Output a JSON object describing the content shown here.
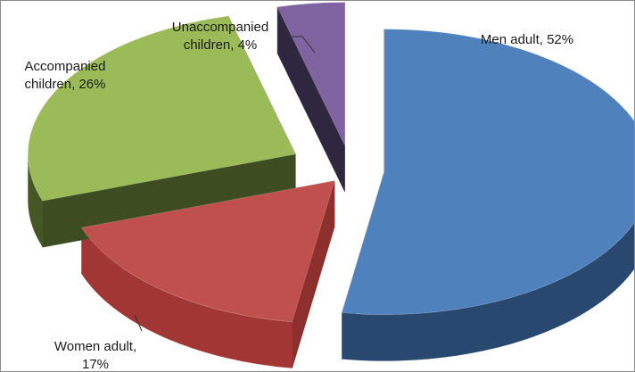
{
  "chart_data": {
    "type": "pie",
    "style": "3d-exploded",
    "title": "",
    "legend": "none",
    "slices": [
      {
        "name": "Men adult",
        "value": 52,
        "label_lines": [
          "Men adult, 52%"
        ],
        "color": "#4f81bd",
        "side_color": "#243f61"
      },
      {
        "name": "Women adult",
        "value": 17,
        "label_lines": [
          "Women adult,",
          "17%"
        ],
        "color": "#c0504d",
        "side_color": "#8c2f2d"
      },
      {
        "name": "Accompanied children",
        "value": 26,
        "label_lines": [
          "Accompanied",
          "children, 26%"
        ],
        "color": "#9bbb59",
        "side_color": "#3d4c21"
      },
      {
        "name": "Unaccompanied children",
        "value": 4,
        "label_lines": [
          "Unaccompanied",
          "children, 4%"
        ],
        "color": "#8064a2",
        "side_color": "#2f2740"
      }
    ]
  }
}
